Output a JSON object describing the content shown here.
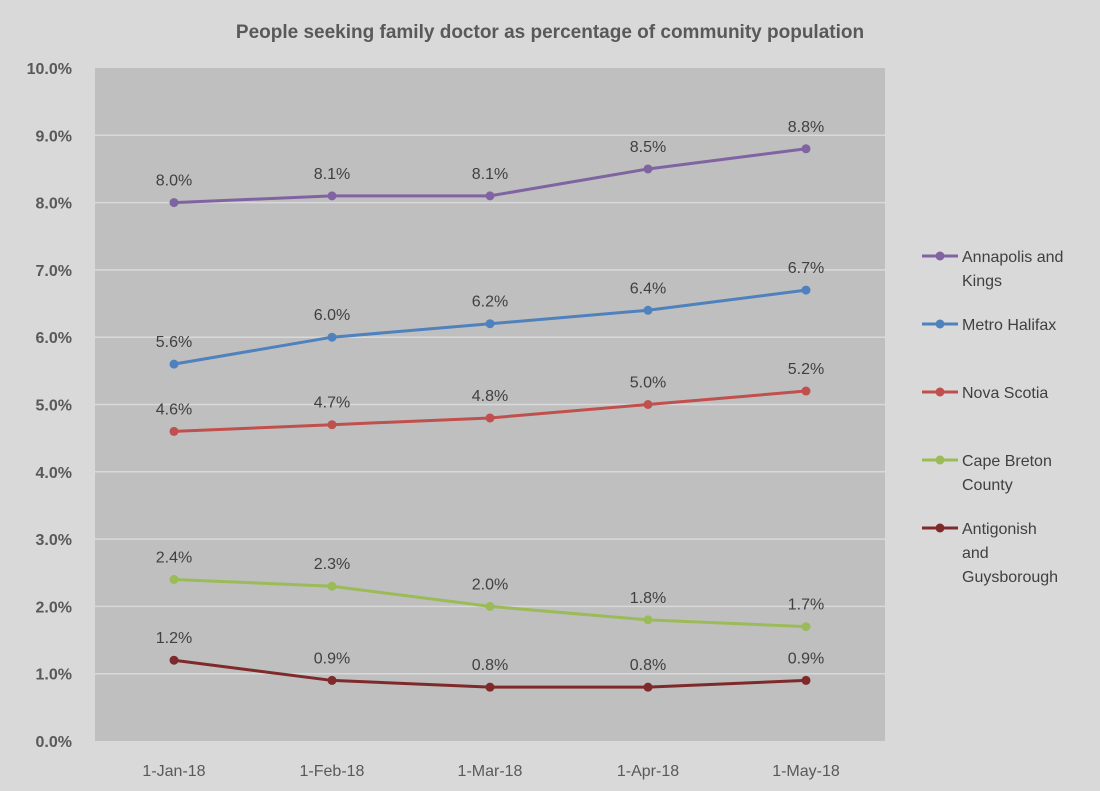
{
  "chart_data": {
    "type": "line",
    "title": "People seeking family doctor as percentage of community population",
    "xlabel": "",
    "ylabel": "",
    "categories": [
      "1-Jan-18",
      "1-Feb-18",
      "1-Mar-18",
      "1-Apr-18",
      "1-May-18"
    ],
    "ylim": [
      0,
      10
    ],
    "yticks": [
      "0.0%",
      "1.0%",
      "2.0%",
      "3.0%",
      "4.0%",
      "5.0%",
      "6.0%",
      "7.0%",
      "8.0%",
      "9.0%",
      "10.0%"
    ],
    "grid": true,
    "legend_position": "right",
    "series": [
      {
        "name": "Annapolis  and Kings",
        "legend_lines": [
          "Annapolis  and",
          "Kings"
        ],
        "color": "#8064a2",
        "values": [
          8.0,
          8.1,
          8.1,
          8.5,
          8.8
        ],
        "labels": [
          "8.0%",
          "8.1%",
          "8.1%",
          "8.5%",
          "8.8%"
        ]
      },
      {
        "name": "Metro Halifax",
        "legend_lines": [
          "Metro Halifax"
        ],
        "color": "#4f81bd",
        "values": [
          5.6,
          6.0,
          6.2,
          6.4,
          6.7
        ],
        "labels": [
          "5.6%",
          "6.0%",
          "6.2%",
          "6.4%",
          "6.7%"
        ]
      },
      {
        "name": "Nova Scotia",
        "legend_lines": [
          "Nova Scotia"
        ],
        "color": "#c0504d",
        "values": [
          4.6,
          4.7,
          4.8,
          5.0,
          5.2
        ],
        "labels": [
          "4.6%",
          "4.7%",
          "4.8%",
          "5.0%",
          "5.2%"
        ]
      },
      {
        "name": "Cape Breton County",
        "legend_lines": [
          "Cape Breton",
          "County"
        ],
        "color": "#9bbb59",
        "values": [
          2.4,
          2.3,
          2.0,
          1.8,
          1.7
        ],
        "labels": [
          "2.4%",
          "2.3%",
          "2.0%",
          "1.8%",
          "1.7%"
        ]
      },
      {
        "name": "Antigonish and Guysborough",
        "legend_lines": [
          "Antigonish",
          "and",
          "Guysborough"
        ],
        "color": "#7f2a2a",
        "values": [
          1.2,
          0.9,
          0.8,
          0.8,
          0.9
        ],
        "labels": [
          "1.2%",
          "0.9%",
          "0.8%",
          "0.8%",
          "0.9%"
        ]
      }
    ]
  }
}
